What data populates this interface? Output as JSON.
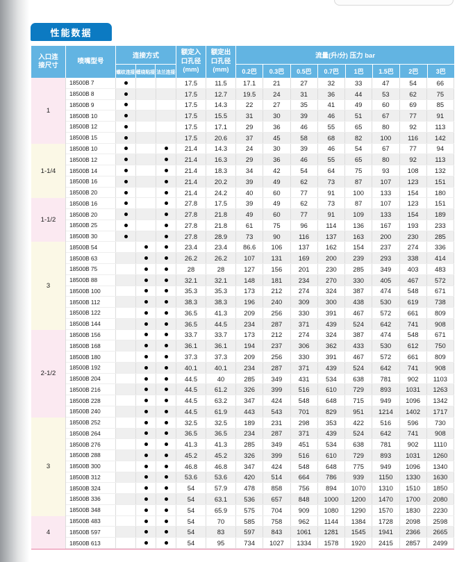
{
  "page": {
    "tab_title": "性能数据"
  },
  "colors": {
    "tab_blue": "#0c7ac2",
    "header_blue": "#62b4e2",
    "row_stripe": "#efefef",
    "group_label_pink": "#fbe9f1",
    "group_label_cream": "#fbf8e6",
    "group_divider_pink": "#e87da2"
  },
  "table": {
    "headers": {
      "inlet_size": "入口连接尺寸",
      "model": "喷嘴型号",
      "connection": "连接方式",
      "connection_subs": [
        "螺纹连接",
        "缠绕粘接",
        "法兰连接"
      ],
      "inlet_bore": "额定入口孔径(mm)",
      "outlet_bore": "额定出口孔径(mm)",
      "flow": "流量(升/分) 压力 bar",
      "pressures": [
        "0.2巴",
        "0.3巴",
        "0.5巴",
        "0.7巴",
        "1巴",
        "1.5巴",
        "2巴",
        "3巴"
      ]
    },
    "groups": [
      {
        "size": "1",
        "tint": "pink",
        "rows": [
          {
            "model": "18500B 7",
            "conn": [
              1,
              0,
              0
            ],
            "inlet": "17.5",
            "outlet": "11.5",
            "flows": [
              "17.1",
              "21",
              "27",
              "32",
              "33",
              "47",
              "54",
              "66"
            ]
          },
          {
            "model": "18500B 8",
            "conn": [
              1,
              0,
              0
            ],
            "inlet": "17.5",
            "outlet": "12.7",
            "flows": [
              "19.5",
              "24",
              "31",
              "36",
              "44",
              "53",
              "62",
              "75"
            ]
          },
          {
            "model": "18500B 9",
            "conn": [
              1,
              0,
              0
            ],
            "inlet": "17.5",
            "outlet": "14.3",
            "flows": [
              "22",
              "27",
              "35",
              "41",
              "49",
              "60",
              "69",
              "85"
            ]
          },
          {
            "model": "18500B 10",
            "conn": [
              1,
              0,
              0
            ],
            "inlet": "17.5",
            "outlet": "15.5",
            "flows": [
              "31",
              "30",
              "39",
              "46",
              "51",
              "67",
              "77",
              "91"
            ]
          },
          {
            "model": "18500B 12",
            "conn": [
              1,
              0,
              0
            ],
            "inlet": "17.5",
            "outlet": "17.1",
            "flows": [
              "29",
              "36",
              "46",
              "55",
              "65",
              "80",
              "92",
              "113"
            ]
          },
          {
            "model": "18500B 15",
            "conn": [
              1,
              0,
              0
            ],
            "inlet": "17.5",
            "outlet": "20.6",
            "flows": [
              "37",
              "45",
              "58",
              "68",
              "82",
              "100",
              "116",
              "142"
            ]
          }
        ]
      },
      {
        "size": "1-1/4",
        "tint": "cream",
        "rows": [
          {
            "model": "18500B 10",
            "conn": [
              1,
              0,
              1
            ],
            "inlet": "21.4",
            "outlet": "14.3",
            "flows": [
              "24",
              "30",
              "39",
              "46",
              "54",
              "67",
              "77",
              "94"
            ]
          },
          {
            "model": "18500B 12",
            "conn": [
              1,
              0,
              1
            ],
            "inlet": "21.4",
            "outlet": "16.3",
            "flows": [
              "29",
              "36",
              "46",
              "55",
              "65",
              "80",
              "92",
              "113"
            ]
          },
          {
            "model": "18500B 14",
            "conn": [
              1,
              0,
              1
            ],
            "inlet": "21.4",
            "outlet": "18.3",
            "flows": [
              "34",
              "42",
              "54",
              "64",
              "75",
              "93",
              "108",
              "132"
            ]
          },
          {
            "model": "18500B 16",
            "conn": [
              1,
              0,
              1
            ],
            "inlet": "21.4",
            "outlet": "20.2",
            "flows": [
              "39",
              "49",
              "62",
              "73",
              "87",
              "107",
              "123",
              "151"
            ]
          },
          {
            "model": "18500B 20",
            "conn": [
              1,
              0,
              1
            ],
            "inlet": "21.4",
            "outlet": "24.2",
            "flows": [
              "40",
              "60",
              "77",
              "91",
              "100",
              "133",
              "154",
              "180"
            ]
          }
        ]
      },
      {
        "size": "1-1/2",
        "tint": "pink",
        "rows": [
          {
            "model": "18500B 16",
            "conn": [
              1,
              0,
              1
            ],
            "inlet": "27.8",
            "outlet": "17.5",
            "flows": [
              "39",
              "49",
              "62",
              "73",
              "87",
              "107",
              "123",
              "151"
            ]
          },
          {
            "model": "18500B 20",
            "conn": [
              1,
              0,
              1
            ],
            "inlet": "27.8",
            "outlet": "21.8",
            "flows": [
              "49",
              "60",
              "77",
              "91",
              "109",
              "133",
              "154",
              "189"
            ]
          },
          {
            "model": "18500B 25",
            "conn": [
              1,
              0,
              1
            ],
            "inlet": "27.8",
            "outlet": "21.8",
            "flows": [
              "61",
              "75",
              "96",
              "114",
              "136",
              "167",
              "193",
              "233"
            ]
          },
          {
            "model": "18500B 30",
            "conn": [
              1,
              0,
              1
            ],
            "inlet": "27.8",
            "outlet": "28.9",
            "flows": [
              "73",
              "90",
              "116",
              "137",
              "163",
              "200",
              "230",
              "285"
            ]
          }
        ]
      },
      {
        "size": "3",
        "tint": "cream",
        "rows": [
          {
            "model": "18500B 54",
            "conn": [
              0,
              1,
              1
            ],
            "inlet": "23.4",
            "outlet": "23.4",
            "flows": [
              "86.6",
              "106",
              "137",
              "162",
              "154",
              "237",
              "274",
              "336"
            ]
          },
          {
            "model": "18500B 63",
            "conn": [
              0,
              1,
              1
            ],
            "inlet": "26.2",
            "outlet": "26.2",
            "flows": [
              "107",
              "131",
              "169",
              "200",
              "239",
              "293",
              "338",
              "414"
            ]
          },
          {
            "model": "18500B 75",
            "conn": [
              0,
              1,
              1
            ],
            "inlet": "28",
            "outlet": "28",
            "flows": [
              "127",
              "156",
              "201",
              "230",
              "285",
              "349",
              "403",
              "483"
            ]
          },
          {
            "model": "18500B 88",
            "conn": [
              0,
              1,
              1
            ],
            "inlet": "32.1",
            "outlet": "32.1",
            "flows": [
              "148",
              "181",
              "234",
              "270",
              "330",
              "405",
              "467",
              "572"
            ]
          },
          {
            "model": "18500B 100",
            "conn": [
              0,
              1,
              1
            ],
            "inlet": "35.3",
            "outlet": "35.3",
            "flows": [
              "173",
              "212",
              "274",
              "324",
              "387",
              "474",
              "548",
              "671"
            ]
          },
          {
            "model": "18500B 112",
            "conn": [
              0,
              1,
              1
            ],
            "inlet": "38.3",
            "outlet": "38.3",
            "flows": [
              "196",
              "240",
              "309",
              "300",
              "438",
              "530",
              "619",
              "738"
            ]
          },
          {
            "model": "18500B 122",
            "conn": [
              0,
              1,
              1
            ],
            "inlet": "36.5",
            "outlet": "41.3",
            "flows": [
              "209",
              "256",
              "330",
              "391",
              "467",
              "572",
              "661",
              "809"
            ]
          },
          {
            "model": "18500B 144",
            "conn": [
              0,
              1,
              1
            ],
            "inlet": "36.5",
            "outlet": "44.5",
            "flows": [
              "234",
              "287",
              "371",
              "439",
              "524",
              "642",
              "741",
              "908"
            ]
          }
        ]
      },
      {
        "size": "2-1/2",
        "tint": "pink",
        "rows": [
          {
            "model": "18500B 156",
            "conn": [
              0,
              1,
              1
            ],
            "inlet": "33.7",
            "outlet": "33.7",
            "flows": [
              "173",
              "212",
              "274",
              "324",
              "387",
              "474",
              "548",
              "671"
            ]
          },
          {
            "model": "18500B 168",
            "conn": [
              0,
              1,
              1
            ],
            "inlet": "36.1",
            "outlet": "36.1",
            "flows": [
              "194",
              "237",
              "306",
              "362",
              "433",
              "530",
              "612",
              "750"
            ]
          },
          {
            "model": "18500B 180",
            "conn": [
              0,
              1,
              1
            ],
            "inlet": "37.3",
            "outlet": "37.3",
            "flows": [
              "209",
              "256",
              "330",
              "391",
              "467",
              "572",
              "661",
              "809"
            ]
          },
          {
            "model": "18500B 192",
            "conn": [
              0,
              1,
              1
            ],
            "inlet": "40.1",
            "outlet": "40.1",
            "flows": [
              "234",
              "287",
              "371",
              "439",
              "524",
              "642",
              "741",
              "908"
            ]
          },
          {
            "model": "18500B 204",
            "conn": [
              0,
              1,
              1
            ],
            "inlet": "44.5",
            "outlet": "40",
            "flows": [
              "285",
              "349",
              "431",
              "534",
              "638",
              "781",
              "902",
              "1103"
            ]
          },
          {
            "model": "18500B 216",
            "conn": [
              0,
              1,
              1
            ],
            "inlet": "44.5",
            "outlet": "61.2",
            "flows": [
              "326",
              "399",
              "516",
              "610",
              "729",
              "893",
              "1031",
              "1263"
            ]
          },
          {
            "model": "18500B 228",
            "conn": [
              0,
              1,
              1
            ],
            "inlet": "44.5",
            "outlet": "63.2",
            "flows": [
              "347",
              "424",
              "548",
              "648",
              "715",
              "949",
              "1096",
              "1342"
            ]
          },
          {
            "model": "18500B 240",
            "conn": [
              0,
              1,
              1
            ],
            "inlet": "44.5",
            "outlet": "61.9",
            "flows": [
              "443",
              "543",
              "701",
              "829",
              "951",
              "1214",
              "1402",
              "1717"
            ]
          }
        ]
      },
      {
        "size": "3",
        "tint": "cream",
        "rows": [
          {
            "model": "18500B 252",
            "conn": [
              0,
              1,
              1
            ],
            "inlet": "32.5",
            "outlet": "32.5",
            "flows": [
              "189",
              "231",
              "298",
              "353",
              "422",
              "516",
              "596",
              "730"
            ]
          },
          {
            "model": "18500B 264",
            "conn": [
              0,
              1,
              1
            ],
            "inlet": "36.5",
            "outlet": "36.5",
            "flows": [
              "234",
              "287",
              "371",
              "439",
              "524",
              "642",
              "741",
              "908"
            ]
          },
          {
            "model": "18500B 276",
            "conn": [
              0,
              1,
              1
            ],
            "inlet": "41.3",
            "outlet": "41.3",
            "flows": [
              "285",
              "349",
              "451",
              "534",
              "638",
              "781",
              "902",
              "1110"
            ]
          },
          {
            "model": "18500B 288",
            "conn": [
              0,
              1,
              1
            ],
            "inlet": "45.2",
            "outlet": "45.2",
            "flows": [
              "326",
              "399",
              "516",
              "610",
              "729",
              "893",
              "1031",
              "1260"
            ]
          },
          {
            "model": "18500B 300",
            "conn": [
              0,
              1,
              1
            ],
            "inlet": "46.8",
            "outlet": "46.8",
            "flows": [
              "347",
              "424",
              "548",
              "648",
              "775",
              "949",
              "1096",
              "1340"
            ]
          },
          {
            "model": "18500B 312",
            "conn": [
              0,
              1,
              1
            ],
            "inlet": "53.6",
            "outlet": "53.6",
            "flows": [
              "420",
              "514",
              "664",
              "786",
              "939",
              "1150",
              "1330",
              "1630"
            ]
          },
          {
            "model": "18500B 324",
            "conn": [
              0,
              1,
              1
            ],
            "inlet": "54",
            "outlet": "57.9",
            "flows": [
              "478",
              "858",
              "756",
              "894",
              "1070",
              "1310",
              "1510",
              "1850"
            ]
          },
          {
            "model": "18500B 336",
            "conn": [
              0,
              1,
              1
            ],
            "inlet": "54",
            "outlet": "63.1",
            "flows": [
              "536",
              "657",
              "848",
              "1000",
              "1200",
              "1470",
              "1700",
              "2080"
            ]
          },
          {
            "model": "18500B 348",
            "conn": [
              0,
              1,
              1
            ],
            "inlet": "54",
            "outlet": "65.9",
            "flows": [
              "575",
              "704",
              "909",
              "1080",
              "1290",
              "1570",
              "1830",
              "2230"
            ]
          }
        ]
      },
      {
        "size": "4",
        "tint": "pink",
        "rows": [
          {
            "model": "18500B 483",
            "conn": [
              0,
              1,
              1
            ],
            "inlet": "54",
            "outlet": "70",
            "flows": [
              "585",
              "758",
              "962",
              "1144",
              "1384",
              "1728",
              "2098",
              "2598"
            ]
          },
          {
            "model": "18500B 597",
            "conn": [
              0,
              1,
              1
            ],
            "inlet": "54",
            "outlet": "83",
            "flows": [
              "597",
              "843",
              "1061",
              "1281",
              "1545",
              "1941",
              "2366",
              "2665"
            ]
          },
          {
            "model": "18500B 613",
            "conn": [
              0,
              1,
              1
            ],
            "inlet": "54",
            "outlet": "95",
            "flows": [
              "734",
              "1027",
              "1334",
              "1578",
              "1920",
              "2415",
              "2857",
              "2499"
            ]
          }
        ]
      }
    ]
  }
}
